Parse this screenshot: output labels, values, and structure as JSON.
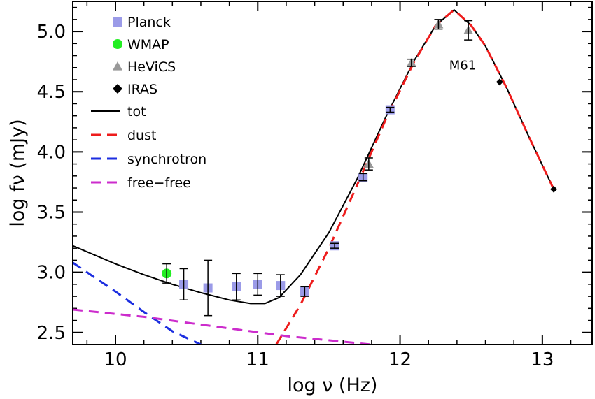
{
  "chart_data": {
    "type": "scatter",
    "title": "",
    "xlabel": "log ν (Hz)",
    "ylabel": "log fν (mJy)",
    "xlim": [
      9.7,
      13.35
    ],
    "ylim": [
      2.4,
      5.25
    ],
    "xticks": [
      10,
      11,
      12,
      13
    ],
    "xtick_labels": [
      "10",
      "11",
      "12",
      "13"
    ],
    "yticks": [
      2.5,
      3.0,
      3.5,
      4.0,
      4.5,
      5.0
    ],
    "ytick_labels": [
      "2.5",
      "3.0",
      "3.5",
      "4.0",
      "4.5",
      "5.0"
    ],
    "x_minor_step": 0.2,
    "y_minor_step": 0.1,
    "grid": false,
    "legend_position": "top-left",
    "annotation": {
      "text": "M61",
      "x": 12.44,
      "y": 4.72
    },
    "points": [
      {
        "name": "Planck",
        "marker": "square",
        "color": "#9b9be8",
        "x": [
          10.48,
          10.65,
          10.85,
          11.0,
          11.16,
          11.33,
          11.54,
          11.74,
          11.93
        ],
        "y": [
          2.9,
          2.87,
          2.88,
          2.9,
          2.89,
          2.84,
          3.22,
          3.79,
          4.35
        ],
        "err": [
          0.13,
          0.23,
          0.11,
          0.09,
          0.09,
          0.04,
          0.02,
          0.03,
          0.02
        ]
      },
      {
        "name": "WMAP",
        "marker": "circle",
        "color": "#22ee22",
        "x": [
          10.36
        ],
        "y": [
          2.99
        ],
        "err": [
          0.08
        ]
      },
      {
        "name": "HeViCS",
        "marker": "triangle",
        "color": "#999999",
        "x": [
          11.78,
          12.08,
          12.27,
          12.48
        ],
        "y": [
          3.9,
          4.74,
          5.06,
          5.01
        ],
        "err": [
          0.05,
          0.03,
          0.04,
          0.08
        ]
      },
      {
        "name": "IRAS",
        "marker": "diamond",
        "color": "#000000",
        "x": [
          12.7,
          13.08
        ],
        "y": [
          4.58,
          3.69
        ],
        "err": [
          0,
          0
        ]
      }
    ],
    "lines": [
      {
        "name": "tot",
        "color": "#000000",
        "dash": "solid",
        "x": [
          9.7,
          10.0,
          10.2,
          10.4,
          10.6,
          10.8,
          10.95,
          11.05,
          11.15,
          11.3,
          11.5,
          11.7,
          11.9,
          12.1,
          12.25,
          12.38,
          12.5,
          12.6,
          12.75,
          12.9,
          13.08
        ],
        "y": [
          3.22,
          3.07,
          2.98,
          2.9,
          2.83,
          2.77,
          2.74,
          2.74,
          2.79,
          2.98,
          3.33,
          3.78,
          4.29,
          4.76,
          5.05,
          5.18,
          5.05,
          4.88,
          4.53,
          4.14,
          3.69
        ]
      },
      {
        "name": "dust",
        "color": "#ee1c1c",
        "dash": "dashed",
        "x": [
          11.13,
          11.3,
          11.5,
          11.7,
          11.9,
          12.1,
          12.25,
          12.38,
          12.5,
          12.6,
          12.75,
          12.9,
          13.08
        ],
        "y": [
          2.4,
          2.73,
          3.2,
          3.73,
          4.27,
          4.75,
          5.05,
          5.18,
          5.05,
          4.88,
          4.53,
          4.14,
          3.69
        ]
      },
      {
        "name": "synchrotron",
        "color": "#1c2ee0",
        "dash": "dashed",
        "x": [
          9.7,
          10.0,
          10.2,
          10.4,
          10.6
        ],
        "y": [
          3.08,
          2.84,
          2.67,
          2.51,
          2.4
        ]
      },
      {
        "name": "free−free",
        "color": "#cc2ccc",
        "dash": "dashed",
        "x": [
          9.7,
          10.2,
          10.7,
          11.2,
          11.8
        ],
        "y": [
          2.69,
          2.63,
          2.55,
          2.47,
          2.4
        ]
      }
    ]
  }
}
